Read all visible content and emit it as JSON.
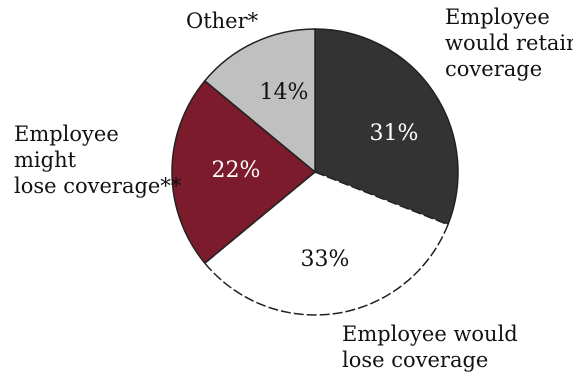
{
  "chart_data": {
    "type": "pie",
    "slices": [
      {
        "label_lines": [
          "Employee",
          "would retain",
          "coverage"
        ],
        "value": 31,
        "value_label": "31%",
        "color": "#333333",
        "text_color": "#ffffff"
      },
      {
        "label_lines": [
          "Employee would",
          "lose coverage"
        ],
        "value": 33,
        "value_label": "33%",
        "color": "#ffffff",
        "text_color": "#111111"
      },
      {
        "label_lines": [
          "Employee",
          "might",
          "lose coverage**"
        ],
        "value": 22,
        "value_label": "22%",
        "color": "#7b1b2c",
        "text_color": "#ffffff"
      },
      {
        "label_lines": [
          "Other*"
        ],
        "value": 14,
        "value_label": "14%",
        "color": "#c0c0c0",
        "text_color": "#111111"
      }
    ]
  }
}
